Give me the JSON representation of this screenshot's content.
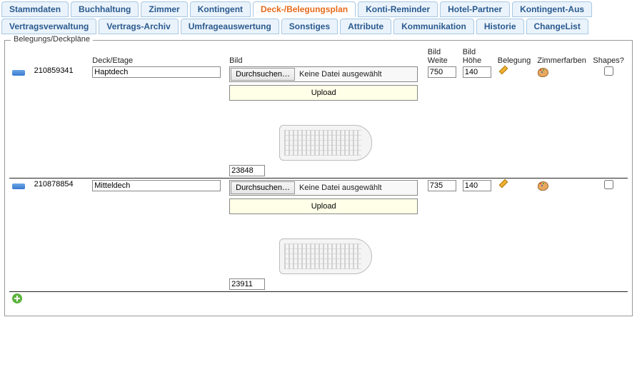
{
  "tabs": {
    "row1": [
      "Stammdaten",
      "Buchhaltung",
      "Zimmer",
      "Kontingent",
      "Deck-/Belegungsplan",
      "Konti-Reminder",
      "Hotel-Partner",
      "Kontingent-Aus"
    ],
    "row2": [
      "Vertragsverwaltung",
      "Vertrags-Archiv",
      "Umfrageauswertung",
      "Sonstiges",
      "Attribute",
      "Kommunikation",
      "Historie",
      "ChangeList"
    ],
    "active": "Deck-/Belegungsplan"
  },
  "fieldset_legend": "Belegungs/Deckpläne",
  "headers": {
    "deck": "Deck/Etage",
    "bild": "Bild",
    "weite": "Bild Weite",
    "hoehe": "Bild Höhe",
    "belegung": "Belegung",
    "zimmerfarben": "Zimmerfarben",
    "shapes": "Shapes?"
  },
  "file": {
    "browse": "Durchsuchen…",
    "none": "Keine Datei ausgewählt",
    "upload": "Upload"
  },
  "rows": [
    {
      "id": "210859341",
      "deck": "Haptdech",
      "weite": "750",
      "hoehe": "140",
      "image_id": "23848",
      "shapes": false
    },
    {
      "id": "210878854",
      "deck": "Mitteldech",
      "weite": "735",
      "hoehe": "140",
      "image_id": "23911",
      "shapes": false
    }
  ],
  "colors": {
    "tab_bg": "#eaf3fb",
    "tab_border": "#a8c8e4",
    "tab_text": "#2a5a8f",
    "active_text": "#e66a1a"
  }
}
